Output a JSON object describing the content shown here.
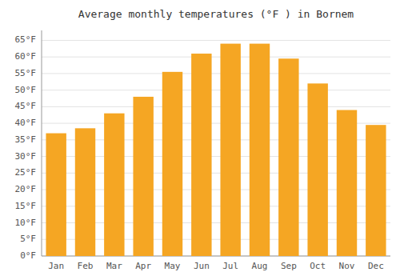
{
  "chart_data": {
    "type": "bar",
    "title": "Average monthly temperatures (°F ) in Bornem",
    "categories": [
      "Jan",
      "Feb",
      "Mar",
      "Apr",
      "May",
      "Jun",
      "Jul",
      "Aug",
      "Sep",
      "Oct",
      "Nov",
      "Dec"
    ],
    "values": [
      37,
      38.5,
      43,
      48,
      55.5,
      61,
      64,
      64,
      59.5,
      52,
      44,
      39.5
    ],
    "color": "#F5A623",
    "ylim": [
      0,
      68
    ],
    "yticks": [
      {
        "value": 0,
        "label": "0°F"
      },
      {
        "value": 5,
        "label": "5°F"
      },
      {
        "value": 10,
        "label": "10°F"
      },
      {
        "value": 15,
        "label": "15°F"
      },
      {
        "value": 20,
        "label": "20°F"
      },
      {
        "value": 25,
        "label": "25°F"
      },
      {
        "value": 30,
        "label": "30°F"
      },
      {
        "value": 35,
        "label": "35°F"
      },
      {
        "value": 40,
        "label": "40°F"
      },
      {
        "value": 45,
        "label": "45°F"
      },
      {
        "value": 50,
        "label": "50°F"
      },
      {
        "value": 55,
        "label": "55°F"
      },
      {
        "value": 60,
        "label": "60°F"
      },
      {
        "value": 65,
        "label": "65°F"
      }
    ],
    "grid": true
  }
}
